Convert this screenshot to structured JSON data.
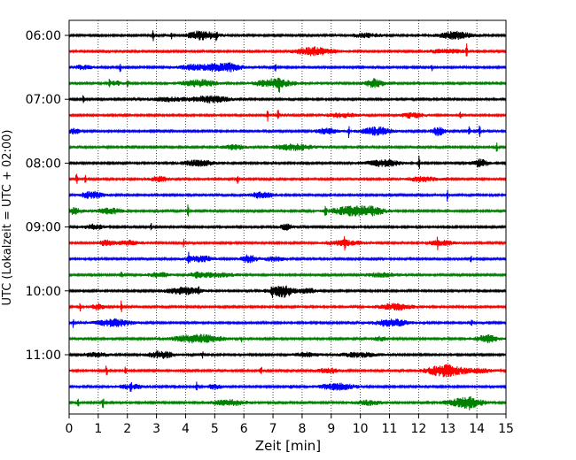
{
  "chart_data": {
    "type": "line",
    "title": "",
    "xlabel": "Zeit  [min]",
    "ylabel": "UTC (Lokalzeit = UTC + 02:00)",
    "xlim": [
      0,
      15
    ],
    "x_ticks": [
      "0",
      "1",
      "2",
      "3",
      "4",
      "5",
      "6",
      "7",
      "8",
      "9",
      "10",
      "11",
      "12",
      "13",
      "14",
      "15"
    ],
    "y_tick_labels": [
      "06:00",
      "07:00",
      "08:00",
      "09:00",
      "10:00",
      "11:00"
    ],
    "row_minutes": 15,
    "start_time": "06:00",
    "grid": "vertical dotted lines at each minute",
    "trace_colors": [
      "#000000",
      "#ff0000",
      "#0000ff",
      "#008000"
    ],
    "traces": [
      {
        "start": "06:00",
        "color": "#000000"
      },
      {
        "start": "06:15",
        "color": "#ff0000"
      },
      {
        "start": "06:30",
        "color": "#0000ff"
      },
      {
        "start": "06:45",
        "color": "#008000"
      },
      {
        "start": "07:00",
        "color": "#000000"
      },
      {
        "start": "07:15",
        "color": "#ff0000"
      },
      {
        "start": "07:30",
        "color": "#0000ff"
      },
      {
        "start": "07:45",
        "color": "#008000"
      },
      {
        "start": "08:00",
        "color": "#000000"
      },
      {
        "start": "08:15",
        "color": "#ff0000"
      },
      {
        "start": "08:30",
        "color": "#0000ff"
      },
      {
        "start": "08:45",
        "color": "#008000"
      },
      {
        "start": "09:00",
        "color": "#000000"
      },
      {
        "start": "09:15",
        "color": "#ff0000"
      },
      {
        "start": "09:30",
        "color": "#0000ff"
      },
      {
        "start": "09:45",
        "color": "#008000"
      },
      {
        "start": "10:00",
        "color": "#000000"
      },
      {
        "start": "10:15",
        "color": "#ff0000"
      },
      {
        "start": "10:30",
        "color": "#0000ff"
      },
      {
        "start": "10:45",
        "color": "#008000"
      },
      {
        "start": "11:00",
        "color": "#000000"
      },
      {
        "start": "11:15",
        "color": "#ff0000"
      },
      {
        "start": "11:30",
        "color": "#0000ff"
      },
      {
        "start": "11:45",
        "color": "#008000"
      }
    ]
  }
}
